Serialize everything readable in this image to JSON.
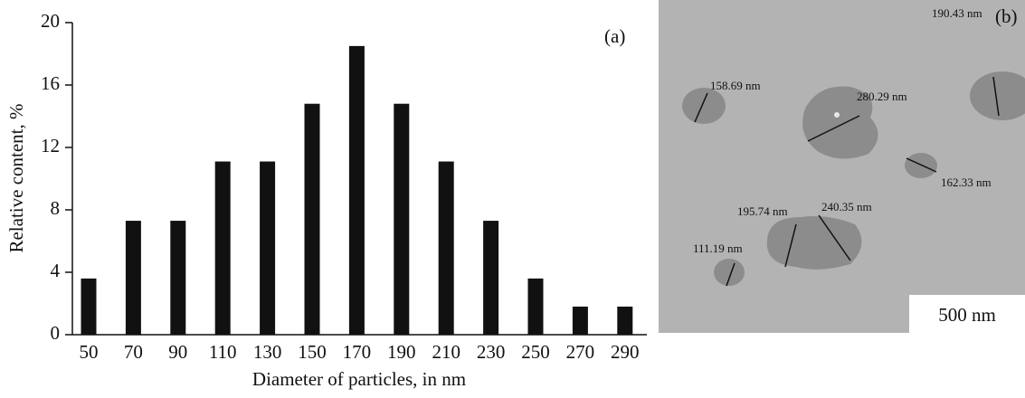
{
  "chart_data": {
    "type": "bar",
    "annotation": "(a)",
    "x_label": "Diameter of particles, in nm",
    "y_label": "Relative content, %",
    "categories": [
      "50",
      "70",
      "90",
      "110",
      "130",
      "150",
      "170",
      "190",
      "210",
      "230",
      "250",
      "270",
      "290"
    ],
    "values": [
      3.6,
      7.3,
      7.3,
      11.1,
      11.1,
      14.8,
      18.5,
      14.8,
      11.1,
      7.3,
      3.6,
      1.8,
      1.8
    ],
    "color": "#111111",
    "ylim": [
      0,
      20
    ],
    "yticks": [
      0,
      4,
      8,
      12,
      16,
      20
    ],
    "grid": false
  },
  "image_panel": {
    "label": "(b)",
    "scale_bar": "500 nm",
    "annotations": [
      "158.69 nm",
      "280.29 nm",
      "190.43 nm",
      "162.33 nm",
      "195.74 nm",
      "240.35 nm",
      "111.19 nm"
    ]
  }
}
